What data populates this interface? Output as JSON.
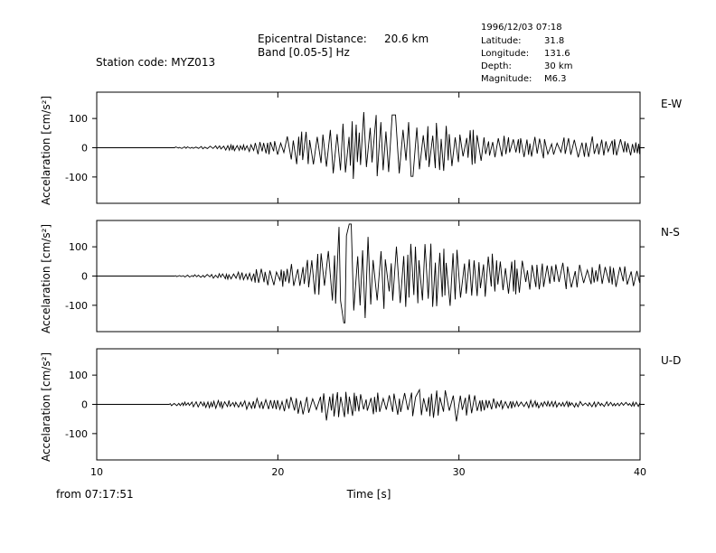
{
  "header": {
    "station": "Station code: MYZ013",
    "epicentral_label": "Epicentral Distance:",
    "epicentral_value": "20.6 km",
    "band": "Band [0.05-5] Hz",
    "datetime": "1996/12/03 07:18",
    "latitude_label": "Latitude:",
    "latitude_value": "31.8",
    "longitude_label": "Longitude:",
    "longitude_value": "131.6",
    "depth_label": "Depth:",
    "depth_value": "30 km",
    "magnitude_label": "Magnitude:",
    "magnitude_value": "M6.3"
  },
  "footer": {
    "start_time": "from 07:17:51",
    "xlabel": "Time [s]"
  },
  "chart_data": {
    "type": "line",
    "x_range": [
      10,
      40
    ],
    "x_ticks": [
      10,
      20,
      30,
      40
    ],
    "x_tick_labels": [
      "10",
      "20",
      "30",
      "40"
    ],
    "y_range": [
      -190,
      190
    ],
    "y_ticks": [
      100,
      0,
      -100
    ],
    "y_tick_labels": [
      "100",
      "0",
      "-100"
    ],
    "ylabel": "Accelaration [cm/s²]",
    "xlabel": "Time [s]",
    "trace_start_s": 14.2,
    "panels": [
      {
        "name": "E-W",
        "envelope": [
          [
            10,
            0
          ],
          [
            14.2,
            0
          ],
          [
            14.3,
            3
          ],
          [
            16,
            5
          ],
          [
            18,
            15
          ],
          [
            19.5,
            30
          ],
          [
            21,
            60
          ],
          [
            22.5,
            85
          ],
          [
            24,
            110
          ],
          [
            25,
            120
          ],
          [
            27,
            95
          ],
          [
            29,
            85
          ],
          [
            31,
            60
          ],
          [
            33,
            40
          ],
          [
            35,
            35
          ],
          [
            37,
            40
          ],
          [
            39,
            30
          ],
          [
            40,
            25
          ]
        ],
        "peaks": [
          {
            "t": 24.8,
            "a": 122
          },
          {
            "t": 27.4,
            "a": -98
          },
          {
            "t": 26.4,
            "a": 112
          }
        ]
      },
      {
        "name": "N-S",
        "envelope": [
          [
            10,
            0
          ],
          [
            14.2,
            0
          ],
          [
            14.3,
            3
          ],
          [
            16,
            6
          ],
          [
            18,
            15
          ],
          [
            19.5,
            35
          ],
          [
            21,
            55
          ],
          [
            22.5,
            90
          ],
          [
            23.5,
            170
          ],
          [
            24.5,
            150
          ],
          [
            26,
            115
          ],
          [
            27.5,
            120
          ],
          [
            29,
            115
          ],
          [
            30.5,
            100
          ],
          [
            32,
            80
          ],
          [
            34,
            50
          ],
          [
            36,
            45
          ],
          [
            38,
            40
          ],
          [
            40,
            35
          ]
        ],
        "peaks": [
          {
            "t": 24.0,
            "a": 178
          },
          {
            "t": 23.3,
            "a": 168
          },
          {
            "t": 23.7,
            "a": -160
          }
        ]
      },
      {
        "name": "U-D",
        "envelope": [
          [
            10,
            0
          ],
          [
            13.9,
            0
          ],
          [
            14.0,
            5
          ],
          [
            16,
            12
          ],
          [
            18,
            18
          ],
          [
            20,
            25
          ],
          [
            22,
            40
          ],
          [
            23.5,
            45
          ],
          [
            25,
            40
          ],
          [
            27,
            45
          ],
          [
            29,
            50
          ],
          [
            30,
            48
          ],
          [
            31,
            25
          ],
          [
            33,
            15
          ],
          [
            36,
            10
          ],
          [
            40,
            8
          ]
        ],
        "peaks": [
          {
            "t": 29.9,
            "a": -58
          },
          {
            "t": 22.6,
            "a": -55
          },
          {
            "t": 27.8,
            "a": 50
          }
        ]
      }
    ]
  }
}
